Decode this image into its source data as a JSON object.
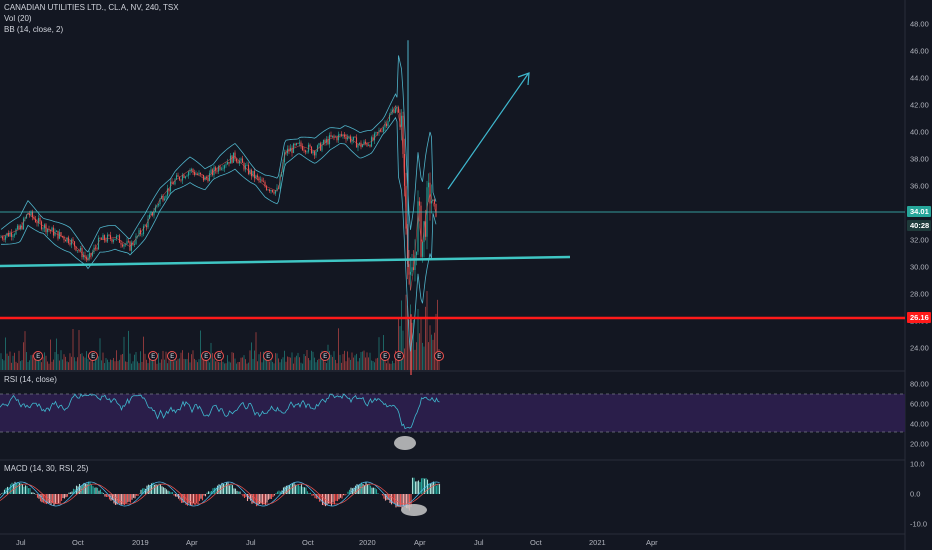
{
  "legend": {
    "title": "CANADIAN UTILITIES LTD., CL.A, NV, 240, TSX",
    "vol": "Vol (20)",
    "bb": "BB (14, close, 2)",
    "rsi": "RSI (14, close)",
    "macd": "MACD (14, 30, RSI, 25)"
  },
  "price_axis": [
    "48.00",
    "46.00",
    "44.00",
    "42.00",
    "40.00",
    "38.00",
    "36.00",
    "34.00",
    "32.00",
    "30.00",
    "28.00",
    "26.00",
    "24.00"
  ],
  "rsi_axis": [
    "80.00",
    "60.00",
    "40.00",
    "20.00"
  ],
  "macd_axis": [
    "10.0",
    "0.0",
    "-10.0"
  ],
  "time_axis": [
    "Jul",
    "Oct",
    "2019",
    "Apr",
    "Jul",
    "Oct",
    "2020",
    "Apr",
    "Jul",
    "Oct",
    "2021",
    "Apr"
  ],
  "badges": {
    "price": "34.01",
    "countdown": "40:28",
    "red_line": "26.16"
  },
  "earnings_marker": "E",
  "colors": {
    "background": "#131722",
    "up": "#26a69a",
    "down": "#ef5350",
    "bb": "#4fb3c9",
    "red_line": "#ff1a1a",
    "trend_line": "#3fc6c4",
    "rsi_band": "#2a1e4a",
    "rsi_line": "#3fb8cf",
    "macd_line": "#4fc3f7",
    "signal_line": "#ef5350"
  },
  "chart_data": {
    "type": "line",
    "symbol": "CANADIAN UTILITIES LTD., CL.A, NV, 240, TSX",
    "price_ylim": [
      23,
      49
    ],
    "last_price": 34.01,
    "horizontal_line": 26.16
  }
}
